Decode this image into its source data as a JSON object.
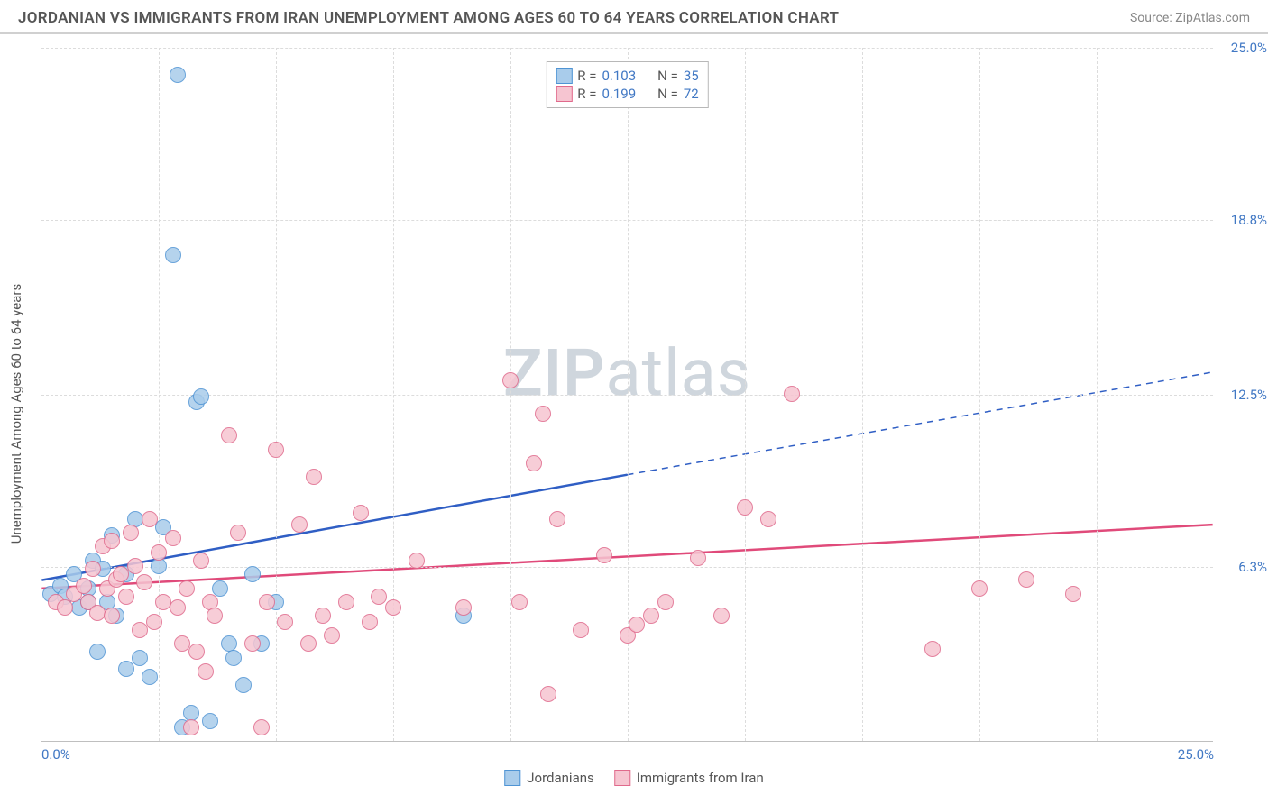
{
  "title": "JORDANIAN VS IMMIGRANTS FROM IRAN UNEMPLOYMENT AMONG AGES 60 TO 64 YEARS CORRELATION CHART",
  "source_label": "Source: ZipAtlas.com",
  "ylabel": "Unemployment Among Ages 60 to 64 years",
  "watermark_bold": "ZIP",
  "watermark_rest": "atlas",
  "chart": {
    "type": "scatter",
    "xlim": [
      0,
      25
    ],
    "ylim": [
      0,
      25
    ],
    "x_ticks": [
      0,
      25
    ],
    "y_ticks": [
      6.3,
      12.5,
      18.8,
      25.0
    ],
    "x_tick_labels": [
      "0.0%",
      "25.0%"
    ],
    "y_tick_labels": [
      "6.3%",
      "12.5%",
      "18.8%",
      "25.0%"
    ],
    "grid_color": "#dcdcdc",
    "axis_color": "#bfbfbf",
    "background_color": "#ffffff",
    "vgrid_count": 10,
    "series": [
      {
        "name": "Jordanians",
        "point_fill": "#a9cceb",
        "point_stroke": "#4f94d4",
        "line_color": "#2f5ec4",
        "line_width": 2.5,
        "r": 0.103,
        "n": 35,
        "trend": {
          "x1": 0,
          "y1": 5.8,
          "x2_solid": 12.5,
          "y2_solid": 9.6,
          "x2_dash": 25,
          "y2_dash": 13.3
        },
        "points": [
          [
            0.2,
            5.3
          ],
          [
            0.4,
            5.6
          ],
          [
            0.5,
            5.2
          ],
          [
            0.7,
            6.0
          ],
          [
            0.8,
            4.8
          ],
          [
            1.0,
            5.5
          ],
          [
            1.0,
            5.0
          ],
          [
            1.1,
            6.5
          ],
          [
            1.2,
            3.2
          ],
          [
            1.3,
            6.2
          ],
          [
            1.4,
            5.0
          ],
          [
            1.5,
            7.4
          ],
          [
            1.6,
            4.5
          ],
          [
            1.8,
            6.0
          ],
          [
            1.8,
            2.6
          ],
          [
            2.0,
            8.0
          ],
          [
            2.1,
            3.0
          ],
          [
            2.3,
            2.3
          ],
          [
            2.5,
            6.3
          ],
          [
            2.6,
            7.7
          ],
          [
            2.8,
            17.5
          ],
          [
            2.9,
            24.0
          ],
          [
            3.0,
            0.5
          ],
          [
            3.2,
            1.0
          ],
          [
            3.3,
            12.2
          ],
          [
            3.4,
            12.4
          ],
          [
            3.6,
            0.7
          ],
          [
            3.8,
            5.5
          ],
          [
            4.0,
            3.5
          ],
          [
            4.1,
            3.0
          ],
          [
            4.3,
            2.0
          ],
          [
            4.5,
            6.0
          ],
          [
            4.7,
            3.5
          ],
          [
            5.0,
            5.0
          ],
          [
            9.0,
            4.5
          ]
        ]
      },
      {
        "name": "Immigrants from Iran",
        "point_fill": "#f6c5d1",
        "point_stroke": "#e06a8c",
        "line_color": "#e04a7a",
        "line_width": 2.5,
        "r": 0.199,
        "n": 72,
        "trend": {
          "x1": 0,
          "y1": 5.5,
          "x2_solid": 25,
          "y2_solid": 7.8,
          "x2_dash": 25,
          "y2_dash": 7.8
        },
        "points": [
          [
            0.3,
            5.0
          ],
          [
            0.5,
            4.8
          ],
          [
            0.7,
            5.3
          ],
          [
            0.9,
            5.6
          ],
          [
            1.0,
            5.0
          ],
          [
            1.1,
            6.2
          ],
          [
            1.2,
            4.6
          ],
          [
            1.3,
            7.0
          ],
          [
            1.4,
            5.5
          ],
          [
            1.5,
            7.2
          ],
          [
            1.5,
            4.5
          ],
          [
            1.6,
            5.8
          ],
          [
            1.7,
            6.0
          ],
          [
            1.8,
            5.2
          ],
          [
            1.9,
            7.5
          ],
          [
            2.0,
            6.3
          ],
          [
            2.1,
            4.0
          ],
          [
            2.2,
            5.7
          ],
          [
            2.3,
            8.0
          ],
          [
            2.4,
            4.3
          ],
          [
            2.5,
            6.8
          ],
          [
            2.6,
            5.0
          ],
          [
            2.8,
            7.3
          ],
          [
            2.9,
            4.8
          ],
          [
            3.0,
            3.5
          ],
          [
            3.1,
            5.5
          ],
          [
            3.2,
            0.5
          ],
          [
            3.3,
            3.2
          ],
          [
            3.4,
            6.5
          ],
          [
            3.5,
            2.5
          ],
          [
            3.6,
            5.0
          ],
          [
            3.7,
            4.5
          ],
          [
            4.0,
            11.0
          ],
          [
            4.2,
            7.5
          ],
          [
            4.5,
            3.5
          ],
          [
            4.7,
            0.5
          ],
          [
            4.8,
            5.0
          ],
          [
            5.0,
            10.5
          ],
          [
            5.2,
            4.3
          ],
          [
            5.5,
            7.8
          ],
          [
            5.7,
            3.5
          ],
          [
            5.8,
            9.5
          ],
          [
            6.0,
            4.5
          ],
          [
            6.2,
            3.8
          ],
          [
            6.5,
            5.0
          ],
          [
            6.8,
            8.2
          ],
          [
            7.0,
            4.3
          ],
          [
            7.2,
            5.2
          ],
          [
            7.5,
            4.8
          ],
          [
            8.0,
            6.5
          ],
          [
            9.0,
            4.8
          ],
          [
            10.0,
            13.0
          ],
          [
            10.2,
            5.0
          ],
          [
            10.5,
            10.0
          ],
          [
            10.7,
            11.8
          ],
          [
            10.8,
            1.7
          ],
          [
            11.0,
            8.0
          ],
          [
            11.5,
            4.0
          ],
          [
            12.0,
            6.7
          ],
          [
            12.5,
            3.8
          ],
          [
            12.7,
            4.2
          ],
          [
            13.0,
            4.5
          ],
          [
            13.3,
            5.0
          ],
          [
            14.0,
            6.6
          ],
          [
            14.5,
            4.5
          ],
          [
            15.0,
            8.4
          ],
          [
            15.5,
            8.0
          ],
          [
            16.0,
            12.5
          ],
          [
            19.0,
            3.3
          ],
          [
            20.0,
            5.5
          ],
          [
            21.0,
            5.8
          ],
          [
            22.0,
            5.3
          ]
        ]
      }
    ]
  }
}
